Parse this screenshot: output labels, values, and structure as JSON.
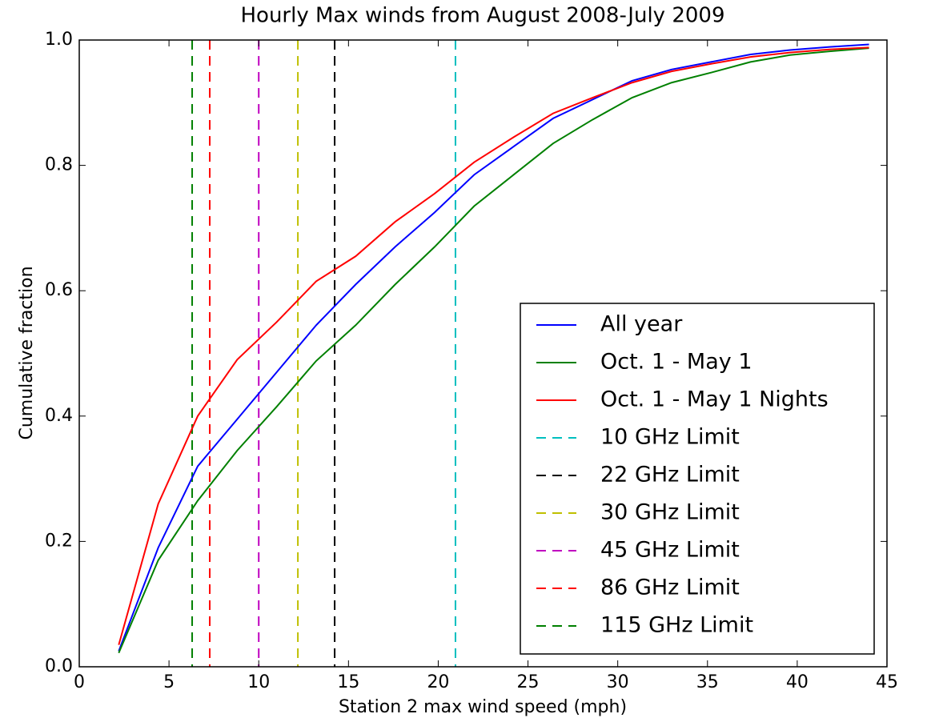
{
  "chart_data": {
    "type": "line",
    "title": "Hourly Max winds from August 2008-July 2009",
    "xlabel": "Station 2 max wind speed (mph)",
    "ylabel": "Cumulative fraction",
    "x": [
      2.2,
      4.4,
      6.6,
      8.8,
      11,
      13.2,
      15.4,
      17.6,
      19.8,
      22,
      24.2,
      26.4,
      28.6,
      30.8,
      33,
      35.2,
      37.4,
      39.6,
      41.8,
      44
    ],
    "series": [
      {
        "name": "All year",
        "color": "#0000ff",
        "values": [
          0.025,
          0.19,
          0.32,
          0.395,
          0.47,
          0.545,
          0.61,
          0.67,
          0.725,
          0.785,
          0.83,
          0.875,
          0.905,
          0.935,
          0.953,
          0.965,
          0.977,
          0.984,
          0.989,
          0.993
        ]
      },
      {
        "name": "Oct. 1 - May 1",
        "color": "#008000",
        "values": [
          0.022,
          0.17,
          0.265,
          0.345,
          0.415,
          0.488,
          0.545,
          0.61,
          0.67,
          0.735,
          0.785,
          0.835,
          0.873,
          0.908,
          0.932,
          0.948,
          0.965,
          0.976,
          0.982,
          0.987
        ]
      },
      {
        "name": "Oct. 1 - May 1 Nights",
        "color": "#ff0000",
        "values": [
          0.035,
          0.26,
          0.4,
          0.49,
          0.55,
          0.615,
          0.655,
          0.71,
          0.755,
          0.805,
          0.845,
          0.883,
          0.908,
          0.932,
          0.95,
          0.962,
          0.973,
          0.98,
          0.985,
          0.988
        ]
      }
    ],
    "vlines": [
      {
        "name": "10 GHz Limit",
        "color": "#00bfbf",
        "x": 20.96
      },
      {
        "name": "22 GHz Limit",
        "color": "#000000",
        "x": 14.23
      },
      {
        "name": "30 GHz Limit",
        "color": "#bfbf00",
        "x": 12.18
      },
      {
        "name": "45 GHz Limit",
        "color": "#bf00bf",
        "x": 10.0
      },
      {
        "name": "86 GHz Limit",
        "color": "#ff0000",
        "x": 7.27
      },
      {
        "name": "115 GHz Limit",
        "color": "#008000",
        "x": 6.29
      }
    ],
    "xlim": [
      0,
      45
    ],
    "ylim": [
      0,
      1
    ],
    "xticks": [
      0,
      5,
      10,
      15,
      20,
      25,
      30,
      35,
      40,
      45
    ],
    "yticks": [
      {
        "value": 0,
        "label": "0.0"
      },
      0.2,
      0.4,
      0.6,
      0.8,
      {
        "value": 1,
        "label": "1.0"
      }
    ],
    "legend": "lower right"
  }
}
